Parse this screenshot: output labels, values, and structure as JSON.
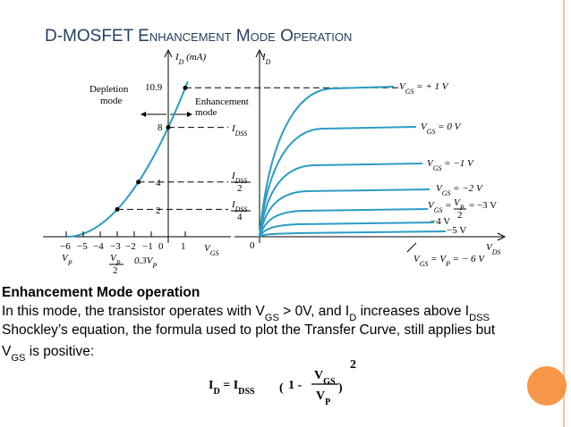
{
  "title": "D-MOSFET Enhancement Mode Operation",
  "figure": {
    "labels": [
      [
        "I",
        {
          "t": "D",
          "s": "sub"
        },
        " (mA)"
      ],
      [
        "Depletion"
      ],
      [
        "mode"
      ],
      [
        "Enhancement"
      ],
      [
        "mode"
      ],
      [
        "10.9"
      ],
      [
        "8"
      ],
      [
        "4"
      ],
      [
        "2"
      ],
      [
        "−6"
      ],
      [
        "−5"
      ],
      [
        "−4"
      ],
      [
        "−3"
      ],
      [
        "−2"
      ],
      [
        "−1"
      ],
      [
        "0"
      ],
      [
        "1"
      ],
      [
        "V",
        {
          "t": "P",
          "s": "sub"
        }
      ],
      [
        "V",
        {
          "t": "P",
          "s": "sub"
        }
      ],
      [
        "2"
      ],
      [
        "0.3V",
        {
          "t": "P",
          "s": "sub"
        }
      ],
      [
        "V",
        {
          "t": "GS",
          "s": "sub"
        }
      ],
      [
        "I",
        {
          "t": "D",
          "s": "sub"
        }
      ],
      [
        "I",
        {
          "t": "DSS",
          "s": "sub"
        }
      ],
      [
        "I",
        {
          "t": "DSS",
          "s": "sub"
        }
      ],
      [
        "2"
      ],
      [
        "I",
        {
          "t": "DSS",
          "s": "sub"
        }
      ],
      [
        "4"
      ],
      [
        "0"
      ],
      [
        "V",
        {
          "t": "DS",
          "s": "sub"
        }
      ],
      [
        "V",
        {
          "t": "GS",
          "s": "sub"
        },
        " = + 1 V"
      ],
      [
        "V",
        {
          "t": "GS",
          "s": "sub"
        },
        " = 0 V"
      ],
      [
        "V",
        {
          "t": "GS",
          "s": "sub"
        },
        " = −1 V"
      ],
      [
        "V",
        {
          "t": "GS",
          "s": "sub"
        },
        " = −2  V"
      ],
      [
        "V",
        {
          "t": "GS",
          "s": "sub"
        },
        " ="
      ],
      [
        "V",
        {
          "t": "P",
          "s": "sub"
        }
      ],
      [
        "2"
      ],
      [
        "= −3 V"
      ],
      [
        "−4 V"
      ],
      [
        "−5 V"
      ],
      [
        "V",
        {
          "t": "GS",
          "s": "sub"
        },
        " = V",
        {
          "t": "P",
          "s": "sub"
        },
        " = − 6 V"
      ]
    ]
  },
  "body": {
    "lines": [
      [
        "Enhancement Mode operation"
      ],
      [
        "In this mode, the transistor operates with V",
        {
          "t": "GS",
          "s": "sub"
        },
        " > 0V, and I",
        {
          "t": "D",
          "s": "sub"
        },
        " increases above I",
        {
          "t": "DSS",
          "s": "sub"
        }
      ],
      [
        "Shockley’s equation, the formula used to plot the Transfer Curve, still applies but"
      ],
      [
        "V",
        {
          "t": "GS",
          "s": "sub"
        },
        " is positive:"
      ]
    ]
  },
  "formula": {
    "parts": [
      [
        "I",
        {
          "t": "D",
          "s": "sub"
        },
        " = I",
        {
          "t": "DSS",
          "s": "sub"
        }
      ],
      [
        "1 -"
      ],
      [
        "V",
        {
          "t": "GS",
          "s": "sub"
        }
      ],
      [
        "V",
        {
          "t": "P",
          "s": "sub"
        }
      ],
      [
        "2"
      ]
    ]
  }
}
